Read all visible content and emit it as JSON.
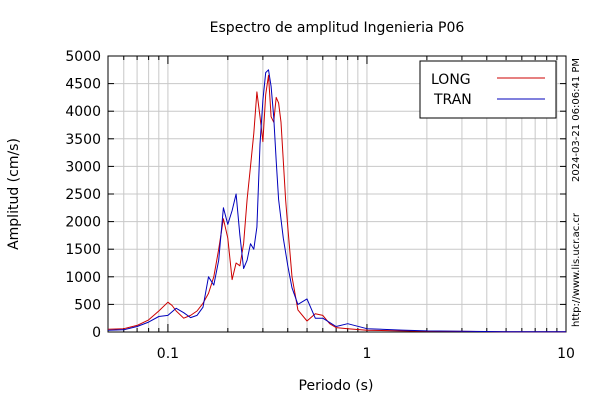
{
  "chart_data": {
    "type": "line",
    "title": "Espectro de amplitud Ingenieria P06",
    "xlabel": "Periodo (s)",
    "ylabel": "Amplitud (cm/s)",
    "x_scale": "log",
    "xlim": [
      0.05,
      10
    ],
    "ylim": [
      0,
      5000
    ],
    "x_ticks": [
      {
        "value": 0.1,
        "label": "0.1"
      },
      {
        "value": 1,
        "label": "1"
      },
      {
        "value": 10,
        "label": "10"
      }
    ],
    "y_ticks": [
      0,
      500,
      1000,
      1500,
      2000,
      2500,
      3000,
      3500,
      4000,
      4500,
      5000
    ],
    "grid": true,
    "legend_position": "top-right",
    "timestamp": "2024-03-21 06:06:41 PM",
    "source": "http://www.lis.ucr.ac.cr",
    "series": [
      {
        "name": "LONG",
        "color": "#cc0000",
        "points": [
          [
            0.05,
            50
          ],
          [
            0.06,
            60
          ],
          [
            0.07,
            120
          ],
          [
            0.08,
            220
          ],
          [
            0.09,
            380
          ],
          [
            0.1,
            540
          ],
          [
            0.105,
            480
          ],
          [
            0.11,
            380
          ],
          [
            0.12,
            250
          ],
          [
            0.13,
            300
          ],
          [
            0.14,
            380
          ],
          [
            0.15,
            520
          ],
          [
            0.16,
            700
          ],
          [
            0.17,
            1000
          ],
          [
            0.18,
            1500
          ],
          [
            0.19,
            2050
          ],
          [
            0.2,
            1700
          ],
          [
            0.21,
            950
          ],
          [
            0.22,
            1250
          ],
          [
            0.23,
            1200
          ],
          [
            0.24,
            1600
          ],
          [
            0.25,
            2400
          ],
          [
            0.26,
            3000
          ],
          [
            0.27,
            3600
          ],
          [
            0.28,
            4350
          ],
          [
            0.29,
            3900
          ],
          [
            0.3,
            3450
          ],
          [
            0.31,
            4300
          ],
          [
            0.32,
            4650
          ],
          [
            0.33,
            3900
          ],
          [
            0.34,
            3800
          ],
          [
            0.35,
            4250
          ],
          [
            0.36,
            4150
          ],
          [
            0.37,
            3800
          ],
          [
            0.39,
            2400
          ],
          [
            0.4,
            1900
          ],
          [
            0.42,
            1000
          ],
          [
            0.45,
            400
          ],
          [
            0.5,
            200
          ],
          [
            0.55,
            330
          ],
          [
            0.6,
            300
          ],
          [
            0.65,
            150
          ],
          [
            0.7,
            80
          ],
          [
            0.8,
            60
          ],
          [
            1,
            30
          ],
          [
            1.5,
            20
          ],
          [
            2,
            15
          ],
          [
            3,
            10
          ],
          [
            5,
            5
          ],
          [
            10,
            3
          ]
        ]
      },
      {
        "name": "TRAN",
        "color": "#0000bb",
        "points": [
          [
            0.05,
            30
          ],
          [
            0.06,
            40
          ],
          [
            0.07,
            100
          ],
          [
            0.08,
            180
          ],
          [
            0.09,
            280
          ],
          [
            0.1,
            300
          ],
          [
            0.11,
            430
          ],
          [
            0.12,
            350
          ],
          [
            0.13,
            260
          ],
          [
            0.14,
            300
          ],
          [
            0.15,
            450
          ],
          [
            0.16,
            1000
          ],
          [
            0.17,
            850
          ],
          [
            0.18,
            1300
          ],
          [
            0.19,
            2250
          ],
          [
            0.2,
            1950
          ],
          [
            0.21,
            2200
          ],
          [
            0.22,
            2500
          ],
          [
            0.23,
            1750
          ],
          [
            0.24,
            1150
          ],
          [
            0.25,
            1300
          ],
          [
            0.26,
            1600
          ],
          [
            0.27,
            1500
          ],
          [
            0.28,
            1900
          ],
          [
            0.29,
            3400
          ],
          [
            0.3,
            4200
          ],
          [
            0.31,
            4700
          ],
          [
            0.32,
            4750
          ],
          [
            0.33,
            4450
          ],
          [
            0.34,
            3900
          ],
          [
            0.35,
            3100
          ],
          [
            0.36,
            2400
          ],
          [
            0.38,
            1700
          ],
          [
            0.4,
            1200
          ],
          [
            0.42,
            800
          ],
          [
            0.45,
            500
          ],
          [
            0.5,
            600
          ],
          [
            0.55,
            250
          ],
          [
            0.6,
            250
          ],
          [
            0.7,
            100
          ],
          [
            0.8,
            150
          ],
          [
            1,
            60
          ],
          [
            1.5,
            35
          ],
          [
            2,
            20
          ],
          [
            3,
            15
          ],
          [
            5,
            5
          ],
          [
            10,
            3
          ]
        ]
      }
    ]
  }
}
